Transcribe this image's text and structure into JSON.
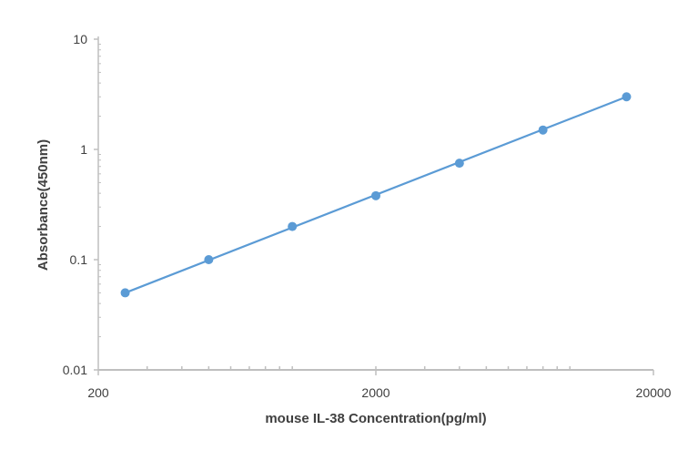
{
  "chart_data": {
    "type": "scatter",
    "title": "",
    "xlabel": "mouse IL-38 Concentration(pg/ml)",
    "ylabel": "Absorbance(450nm)",
    "x_scale": "log",
    "y_scale": "log",
    "xlim": [
      200,
      20000
    ],
    "ylim": [
      0.01,
      10
    ],
    "x_ticks": [
      {
        "value": 200,
        "label": "200"
      },
      {
        "value": 2000,
        "label": "2000"
      },
      {
        "value": 20000,
        "label": "20000"
      }
    ],
    "y_ticks": [
      {
        "value": 0.01,
        "label": "0.01"
      },
      {
        "value": 0.1,
        "label": "0.1"
      },
      {
        "value": 1,
        "label": "1"
      },
      {
        "value": 10,
        "label": "10"
      }
    ],
    "grid": false,
    "legend": "none",
    "series": [
      {
        "x": [
          250,
          500,
          1000,
          2000,
          4000,
          8000,
          16000
        ],
        "y": [
          0.05,
          0.1,
          0.2,
          0.38,
          0.75,
          1.5,
          3.0
        ]
      }
    ],
    "trendline": {
      "type": "power",
      "x_range": [
        250,
        16000
      ],
      "y_range": [
        0.05,
        3.0
      ]
    },
    "colors": {
      "series": "#5b9bd5",
      "line": "#5b9bd5",
      "axis": "#bfbfbf",
      "text": "#404040"
    }
  }
}
